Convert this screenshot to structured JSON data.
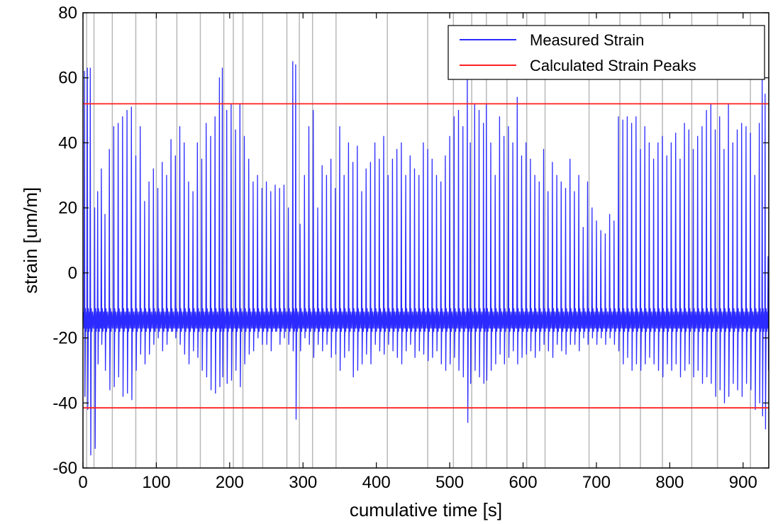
{
  "chart_data": {
    "type": "line",
    "xlabel": "cumulative time [s]",
    "ylabel": "strain [um/m]",
    "xlim": [
      0,
      935
    ],
    "ylim": [
      -60,
      80
    ],
    "xticks": [
      0,
      100,
      200,
      300,
      400,
      500,
      600,
      700,
      800,
      900
    ],
    "yticks": [
      -60,
      -40,
      -20,
      0,
      20,
      40,
      60,
      80
    ],
    "grid": false,
    "legend_position": "top-right",
    "colors": {
      "measured": "#2b2bff",
      "peaks": "#ff1f1f",
      "vertical_markers": "#b8b8b8"
    },
    "vertical_markers": [
      5,
      15,
      40,
      72,
      100,
      128,
      160,
      192,
      205,
      218,
      245,
      278,
      295,
      313,
      345,
      415,
      470,
      505,
      530,
      550,
      578,
      605,
      630,
      690,
      732,
      760,
      790,
      830,
      865,
      910
    ],
    "series": [
      {
        "name": "Measured Strain",
        "color": "#2b2bff",
        "baseline": -14,
        "peaks": [
          [
            2,
            62,
            -38
          ],
          [
            6,
            63,
            -42
          ],
          [
            10,
            63,
            -56
          ],
          [
            16,
            20,
            -54
          ],
          [
            20,
            25,
            -28
          ],
          [
            25,
            32,
            -22
          ],
          [
            30,
            18,
            -30
          ],
          [
            36,
            38,
            -36
          ],
          [
            42,
            45,
            -35
          ],
          [
            48,
            46,
            -32
          ],
          [
            54,
            48,
            -38
          ],
          [
            60,
            50,
            -37
          ],
          [
            66,
            51,
            -39
          ],
          [
            72,
            36,
            -30
          ],
          [
            78,
            45,
            -25
          ],
          [
            84,
            22,
            -28
          ],
          [
            90,
            28,
            -25
          ],
          [
            96,
            32,
            -22
          ],
          [
            102,
            26,
            -20
          ],
          [
            108,
            34,
            -24
          ],
          [
            114,
            30,
            -22
          ],
          [
            120,
            41,
            -18
          ],
          [
            126,
            36,
            -20
          ],
          [
            132,
            45,
            -22
          ],
          [
            138,
            40,
            -25
          ],
          [
            144,
            28,
            -28
          ],
          [
            150,
            25,
            -24
          ],
          [
            156,
            40,
            -26
          ],
          [
            162,
            35,
            -30
          ],
          [
            168,
            46,
            -32
          ],
          [
            174,
            42,
            -36
          ],
          [
            180,
            48,
            -37
          ],
          [
            186,
            60,
            -35
          ],
          [
            190,
            63,
            -32
          ],
          [
            196,
            50,
            -34
          ],
          [
            202,
            52,
            -33
          ],
          [
            208,
            44,
            -30
          ],
          [
            214,
            52,
            -35
          ],
          [
            220,
            42,
            -28
          ],
          [
            226,
            35,
            -25
          ],
          [
            232,
            28,
            -24
          ],
          [
            238,
            30,
            -20
          ],
          [
            244,
            26,
            -22
          ],
          [
            250,
            28,
            -22
          ],
          [
            256,
            25,
            -24
          ],
          [
            262,
            27,
            -18
          ],
          [
            268,
            26,
            -22
          ],
          [
            274,
            27,
            -20
          ],
          [
            280,
            20,
            -22
          ],
          [
            286,
            65,
            -24
          ],
          [
            290,
            64,
            -45
          ],
          [
            296,
            15,
            -24
          ],
          [
            302,
            30,
            -20
          ],
          [
            308,
            45,
            -22
          ],
          [
            314,
            50,
            -26
          ],
          [
            320,
            20,
            -22
          ],
          [
            326,
            33,
            -24
          ],
          [
            332,
            30,
            -22
          ],
          [
            338,
            35,
            -26
          ],
          [
            344,
            26,
            -25
          ],
          [
            350,
            45,
            -30
          ],
          [
            356,
            30,
            -26
          ],
          [
            362,
            40,
            -24
          ],
          [
            368,
            34,
            -32
          ],
          [
            374,
            39,
            -30
          ],
          [
            380,
            25,
            -28
          ],
          [
            386,
            32,
            -25
          ],
          [
            392,
            34,
            -28
          ],
          [
            398,
            40,
            -22
          ],
          [
            404,
            35,
            -24
          ],
          [
            410,
            42,
            -25
          ],
          [
            416,
            30,
            -22
          ],
          [
            422,
            35,
            -24
          ],
          [
            428,
            38,
            -26
          ],
          [
            434,
            40,
            -28
          ],
          [
            440,
            30,
            -24
          ],
          [
            446,
            36,
            -22
          ],
          [
            452,
            32,
            -26
          ],
          [
            458,
            30,
            -24
          ],
          [
            464,
            40,
            -25
          ],
          [
            470,
            38,
            -27
          ],
          [
            476,
            35,
            -26
          ],
          [
            482,
            30,
            -24
          ],
          [
            488,
            28,
            -28
          ],
          [
            494,
            36,
            -30
          ],
          [
            500,
            42,
            -28
          ],
          [
            506,
            48,
            -26
          ],
          [
            512,
            50,
            -30
          ],
          [
            518,
            45,
            -32
          ],
          [
            524,
            60,
            -46
          ],
          [
            528,
            40,
            -34
          ],
          [
            534,
            52,
            -30
          ],
          [
            540,
            50,
            -32
          ],
          [
            546,
            46,
            -34
          ],
          [
            550,
            52,
            -33
          ],
          [
            556,
            40,
            -30
          ],
          [
            562,
            30,
            -28
          ],
          [
            568,
            48,
            -25
          ],
          [
            574,
            42,
            -28
          ],
          [
            580,
            45,
            -26
          ],
          [
            586,
            40,
            -24
          ],
          [
            592,
            54,
            -28
          ],
          [
            598,
            36,
            -26
          ],
          [
            604,
            40,
            -25
          ],
          [
            610,
            35,
            -24
          ],
          [
            616,
            30,
            -26
          ],
          [
            622,
            28,
            -24
          ],
          [
            628,
            38,
            -22
          ],
          [
            634,
            25,
            -24
          ],
          [
            640,
            34,
            -26
          ],
          [
            646,
            30,
            -22
          ],
          [
            652,
            28,
            -24
          ],
          [
            658,
            26,
            -25
          ],
          [
            664,
            35,
            -22
          ],
          [
            670,
            25,
            -22
          ],
          [
            676,
            30,
            -24
          ],
          [
            682,
            14,
            -20
          ],
          [
            688,
            28,
            -22
          ],
          [
            694,
            20,
            -20
          ],
          [
            700,
            16,
            -22
          ],
          [
            706,
            13,
            -20
          ],
          [
            712,
            12,
            -22
          ],
          [
            718,
            18,
            -20
          ],
          [
            724,
            16,
            -22
          ],
          [
            730,
            48,
            -24
          ],
          [
            736,
            47,
            -28
          ],
          [
            742,
            48,
            -26
          ],
          [
            748,
            46,
            -30
          ],
          [
            754,
            48,
            -28
          ],
          [
            760,
            38,
            -30
          ],
          [
            766,
            45,
            -28
          ],
          [
            772,
            40,
            -26
          ],
          [
            778,
            35,
            -28
          ],
          [
            784,
            40,
            -30
          ],
          [
            790,
            42,
            -32
          ],
          [
            796,
            36,
            -28
          ],
          [
            802,
            40,
            -30
          ],
          [
            808,
            43,
            -28
          ],
          [
            814,
            35,
            -32
          ],
          [
            820,
            46,
            -30
          ],
          [
            826,
            44,
            -28
          ],
          [
            832,
            38,
            -32
          ],
          [
            838,
            42,
            -30
          ],
          [
            844,
            45,
            -34
          ],
          [
            850,
            50,
            -32
          ],
          [
            856,
            52,
            -34
          ],
          [
            862,
            44,
            -38
          ],
          [
            868,
            48,
            -36
          ],
          [
            874,
            38,
            -40
          ],
          [
            880,
            52,
            -38
          ],
          [
            886,
            40,
            -34
          ],
          [
            892,
            44,
            -36
          ],
          [
            898,
            46,
            -38
          ],
          [
            904,
            45,
            -34
          ],
          [
            910,
            43,
            -36
          ],
          [
            916,
            30,
            -42
          ],
          [
            922,
            46,
            -40
          ],
          [
            926,
            60,
            -44
          ],
          [
            930,
            55,
            -48
          ],
          [
            934,
            5,
            -30
          ]
        ]
      },
      {
        "name": "Calculated Strain Peaks",
        "color": "#ff1f1f",
        "levels": [
          52,
          -41.5
        ]
      }
    ]
  }
}
